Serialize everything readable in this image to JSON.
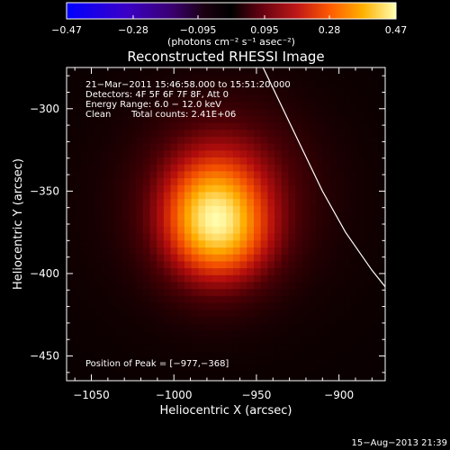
{
  "chart_data": {
    "type": "heatmap",
    "title": "Reconstructed RHESSI Image",
    "xlabel": "Heliocentric X (arcsec)",
    "ylabel": "Heliocentric Y (arcsec)",
    "xlim": [
      -1065,
      -872
    ],
    "ylim": [
      -465,
      -275
    ],
    "xticks": [
      -1050,
      -1000,
      -950,
      -900
    ],
    "yticks": [
      -300,
      -350,
      -400,
      -450
    ],
    "xtick_labels": [
      "−1050",
      "−1000",
      "−950",
      "−900"
    ],
    "ytick_labels": [
      "−300",
      "−350",
      "−400",
      "−450"
    ],
    "colorbar": {
      "range": [
        -0.47,
        0.47
      ],
      "ticks": [
        -0.47,
        -0.28,
        -0.095,
        0.095,
        0.28,
        0.47
      ],
      "tick_labels": [
        "−0.47",
        "−0.28",
        "−0.095",
        "0.095",
        "0.28",
        "0.47"
      ],
      "label": "(photons cm⁻² s⁻¹ asec⁻²)"
    },
    "info_lines": [
      "21−Mar−2011 15:46:58.000 to 15:51:20.000",
      "Detectors: 4F 5F 6F 7F 8F, Att 0",
      "Energy Range: 6.0 − 12.0 keV"
    ],
    "clean_label": "Clean",
    "total_counts": "Total counts: 2.41E+06",
    "peak_label": "Position of Peak = [−977,−368]",
    "peak": [
      -977,
      -368
    ],
    "limb_curve": [
      [
        -946,
        -275
      ],
      [
        -934,
        -300
      ],
      [
        -922,
        -325
      ],
      [
        -910,
        -350
      ],
      [
        -896,
        -375
      ],
      [
        -880,
        -398
      ],
      [
        -872,
        -408
      ]
    ],
    "blobs": [
      {
        "x": -977,
        "y": -368,
        "sx": 22,
        "sy": 26,
        "amp": 0.32
      },
      {
        "x": -966,
        "y": -345,
        "sx": 32,
        "sy": 33,
        "amp": 0.1
      },
      {
        "x": -958,
        "y": -382,
        "sx": 20,
        "sy": 18,
        "amp": 0.05
      },
      {
        "x": -975,
        "y": -360,
        "sx": 58,
        "sy": 52,
        "amp": 0.035
      }
    ],
    "accent_colors": [
      "#0000ff",
      "#8b008b",
      "#ff4000",
      "#ffff80"
    ]
  },
  "footer": {
    "timestamp": "15−Aug−2013 21:39"
  }
}
